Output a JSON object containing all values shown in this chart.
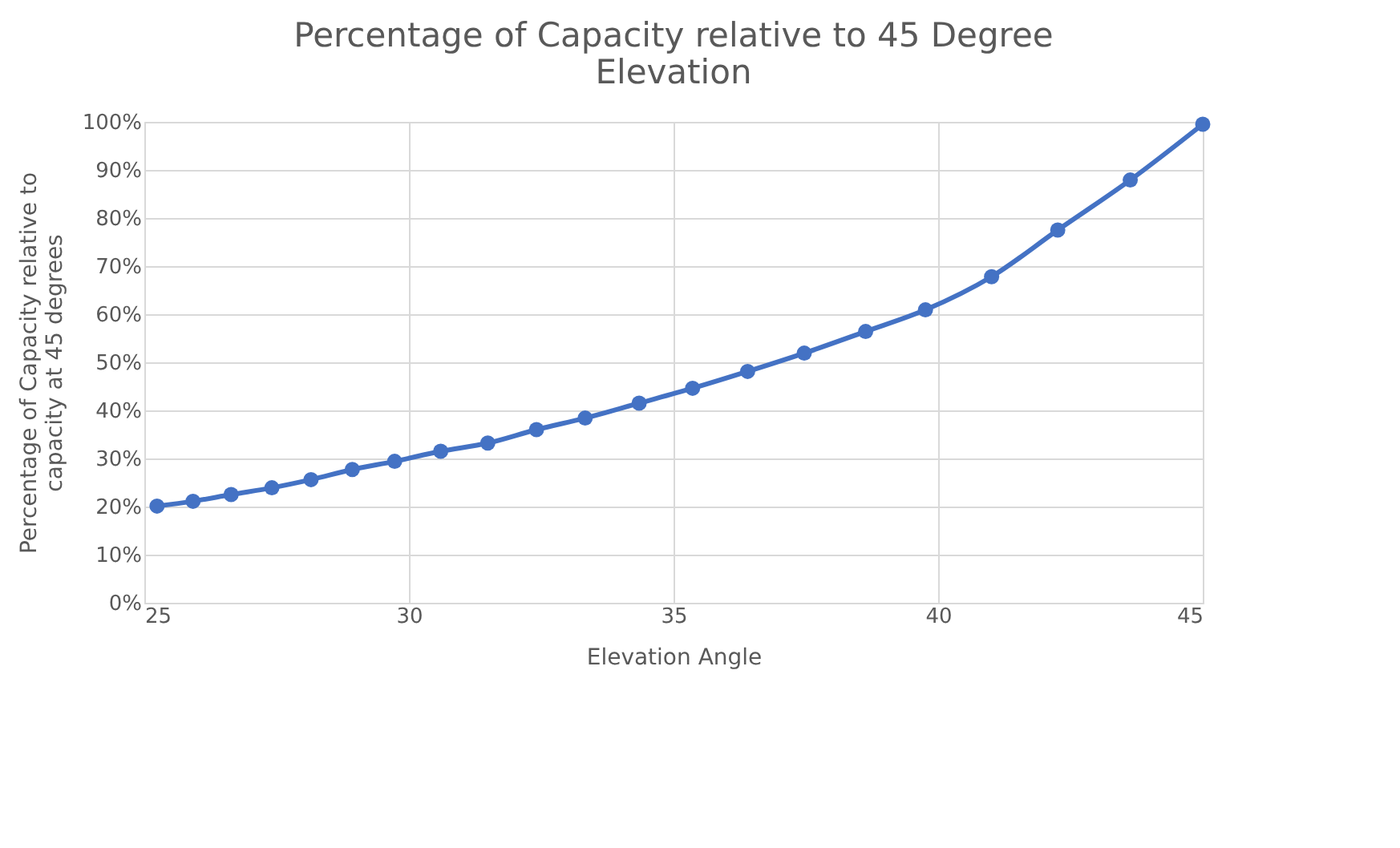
{
  "chart_data": {
    "type": "line",
    "title": "Percentage of Capacity relative to 45 Degree Elevation",
    "xlabel": "Elevation Angle",
    "ylabel": "Percentage  of Capacity relative to capacity at 45 degrees",
    "x": [
      25.24,
      25.92,
      26.64,
      27.41,
      28.15,
      28.93,
      29.73,
      30.6,
      31.49,
      32.41,
      33.33,
      34.35,
      35.36,
      36.4,
      37.47,
      38.63,
      39.76,
      41.01,
      42.26,
      43.63,
      45.0
    ],
    "series": [
      {
        "color": "#4472c4",
        "values": [
          20.1,
          21.1,
          22.5,
          23.9,
          25.6,
          27.7,
          29.4,
          31.5,
          33.2,
          36.0,
          38.4,
          41.5,
          44.6,
          48.1,
          51.9,
          56.4,
          60.9,
          67.8,
          77.5,
          87.9,
          99.5
        ]
      }
    ],
    "xlim": [
      25,
      45
    ],
    "xticks": [
      25,
      30,
      35,
      40,
      45
    ],
    "ylim": [
      0,
      100
    ],
    "yticks": [
      {
        "value": 0,
        "label": "0%"
      },
      {
        "value": 10,
        "label": "10%"
      },
      {
        "value": 20,
        "label": "20%"
      },
      {
        "value": 30,
        "label": "30%"
      },
      {
        "value": 40,
        "label": "40%"
      },
      {
        "value": 50,
        "label": "50%"
      },
      {
        "value": 60,
        "label": "60%"
      },
      {
        "value": 70,
        "label": "70%"
      },
      {
        "value": 80,
        "label": "80%"
      },
      {
        "value": 90,
        "label": "90%"
      },
      {
        "value": 100,
        "label": "100%"
      }
    ],
    "grid": true,
    "marker": "circle",
    "line_style": "solid"
  }
}
